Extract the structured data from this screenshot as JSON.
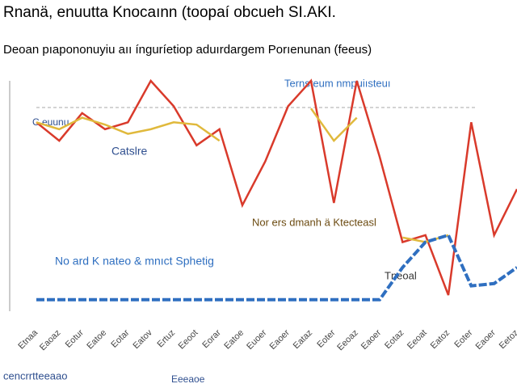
{
  "chart_data": {
    "type": "line",
    "title": "Rnanä, enuutta Knocaınn (toopaí obcueh SI.AKI.",
    "subtitle": "Deoan pıapononuyiu aıı ínguríetiop aduırdargem Porıenunan (feeus)",
    "annotations": [
      "Ternsteum nmpuiısteuı",
      "C euunu",
      "Catslre",
      "Nor ers dmanh ä Ktecteasl",
      "No ard K nateo & mnıct Sphetig",
      "Tneoal"
    ],
    "x_label": "cencrrtteeaao",
    "x_label_2": "Eeeaoe",
    "categories": [
      "Etnaa",
      "Eaoaz",
      "Eotur",
      "Eatoe",
      "Eotar",
      "Eatov",
      "Ertuz",
      "Eeoot",
      "Eorar",
      "Eatoe",
      "Euoer",
      "Eaoer",
      "Eataz",
      "Eoter",
      "Eeoaz",
      "Eaoer",
      "Eotaz",
      "Eeoat",
      "Eatoz",
      "Eoter",
      "Eaoer",
      "Eetoz"
    ],
    "ylim": [
      0,
      100
    ],
    "series": [
      {
        "name": "Red",
        "color": "#d93a2b",
        "values": [
          82,
          74,
          86,
          79,
          82,
          100,
          89,
          72,
          79,
          46,
          65,
          89,
          100,
          47,
          100,
          67,
          30,
          33,
          7,
          82,
          33,
          53
        ]
      },
      {
        "name": "Yellow",
        "color": "#e0b93c",
        "values": [
          82,
          79,
          84,
          81,
          77,
          79,
          82,
          81,
          74,
          null,
          null,
          null,
          88,
          74,
          84,
          null,
          32,
          30,
          33,
          null,
          null,
          null
        ]
      },
      {
        "name": "Blue",
        "color": "#2f6fc0",
        "values": [
          5,
          5,
          5,
          5,
          5,
          5,
          5,
          5,
          5,
          5,
          5,
          5,
          5,
          5,
          5,
          5,
          19,
          30,
          33,
          11,
          12,
          19
        ]
      }
    ]
  }
}
